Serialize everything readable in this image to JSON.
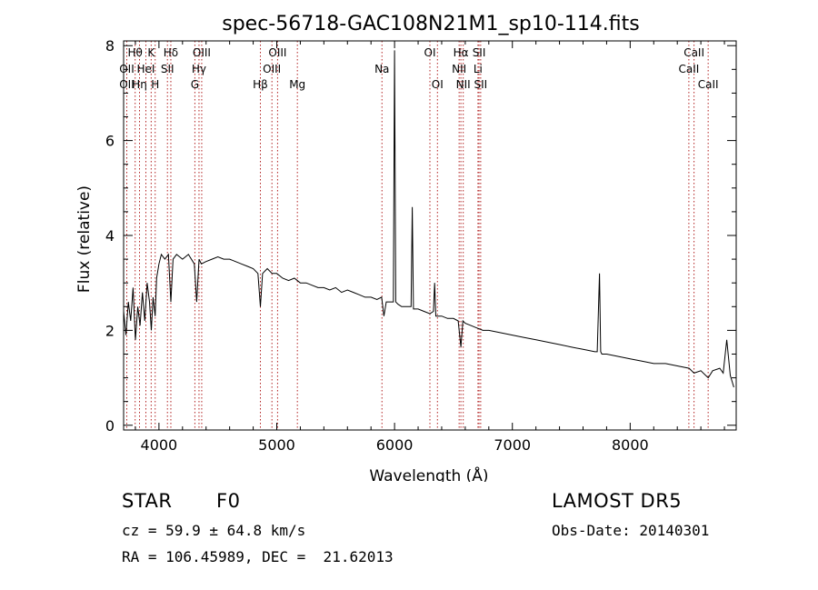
{
  "chart_data": {
    "type": "line",
    "title": "spec-56718-GAC108N21M1_sp10-114.fits",
    "xlabel": "Wavelength (Å)",
    "ylabel": "Flux (relative)",
    "xlim": [
      3700,
      8900
    ],
    "ylim": [
      -0.1,
      8.1
    ],
    "x_ticks": [
      4000,
      5000,
      6000,
      7000,
      8000
    ],
    "y_ticks": [
      0,
      2,
      4,
      6,
      8
    ],
    "grid": false,
    "series": [
      {
        "x": [
          3700,
          3720,
          3740,
          3760,
          3780,
          3800,
          3820,
          3840,
          3860,
          3880,
          3900,
          3920,
          3935,
          3950,
          3968,
          3980,
          4000,
          4020,
          4050,
          4080,
          4101,
          4120,
          4150,
          4200,
          4250,
          4300,
          4320,
          4340,
          4360,
          4400,
          4450,
          4500,
          4550,
          4600,
          4650,
          4700,
          4750,
          4800,
          4840,
          4861,
          4880,
          4920,
          4960,
          5000,
          5050,
          5100,
          5150,
          5200,
          5250,
          5300,
          5350,
          5400,
          5450,
          5500,
          5550,
          5600,
          5650,
          5700,
          5750,
          5800,
          5850,
          5890,
          5910,
          5930,
          5960,
          5990,
          6000,
          6010,
          6030,
          6060,
          6100,
          6140,
          6150,
          6160,
          6200,
          6250,
          6300,
          6330,
          6340,
          6350,
          6400,
          6450,
          6500,
          6540,
          6563,
          6580,
          6600,
          6650,
          6700,
          6750,
          6800,
          6900,
          7000,
          7100,
          7200,
          7300,
          7400,
          7500,
          7600,
          7700,
          7720,
          7740,
          7750,
          7760,
          7800,
          7900,
          8000,
          8100,
          8200,
          8300,
          8400,
          8500,
          8542,
          8600,
          8662,
          8700,
          8760,
          8790,
          8820,
          8850,
          8880
        ],
        "y": [
          2.4,
          1.9,
          2.6,
          2.2,
          2.9,
          1.8,
          2.5,
          2.1,
          2.8,
          2.2,
          3.0,
          2.6,
          2.0,
          2.7,
          2.3,
          3.1,
          3.4,
          3.6,
          3.5,
          3.6,
          2.6,
          3.5,
          3.6,
          3.5,
          3.6,
          3.4,
          2.6,
          3.5,
          3.4,
          3.45,
          3.5,
          3.55,
          3.5,
          3.5,
          3.45,
          3.4,
          3.35,
          3.3,
          3.2,
          2.5,
          3.2,
          3.3,
          3.2,
          3.2,
          3.1,
          3.05,
          3.1,
          3.0,
          3.0,
          2.95,
          2.9,
          2.9,
          2.85,
          2.9,
          2.8,
          2.85,
          2.8,
          2.75,
          2.7,
          2.7,
          2.65,
          2.7,
          2.3,
          2.6,
          2.6,
          2.6,
          7.9,
          2.6,
          2.55,
          2.5,
          2.5,
          2.5,
          4.6,
          2.45,
          2.45,
          2.4,
          2.35,
          2.4,
          3.0,
          2.3,
          2.3,
          2.25,
          2.25,
          2.2,
          1.65,
          2.2,
          2.15,
          2.1,
          2.05,
          2.0,
          2.0,
          1.95,
          1.9,
          1.85,
          1.8,
          1.75,
          1.7,
          1.65,
          1.6,
          1.55,
          1.55,
          3.2,
          1.55,
          1.5,
          1.5,
          1.45,
          1.4,
          1.35,
          1.3,
          1.3,
          1.25,
          1.2,
          1.1,
          1.15,
          1.0,
          1.15,
          1.2,
          1.1,
          1.8,
          1.05,
          0.8
        ]
      }
    ],
    "emission_lines": [
      {
        "label": "Hθ",
        "x": 3798,
        "row": 0
      },
      {
        "label": "OII",
        "x": 3727,
        "row": 1
      },
      {
        "label": "HeI",
        "x": 3889,
        "row": 1
      },
      {
        "label": "OII",
        "x": 3727,
        "row": 2
      },
      {
        "label": "Hη",
        "x": 3835,
        "row": 2
      },
      {
        "label": "K",
        "x": 3934,
        "row": 0
      },
      {
        "label": "H",
        "x": 3968,
        "row": 2
      },
      {
        "label": "Hδ",
        "x": 4101,
        "row": 0
      },
      {
        "label": "SII",
        "x": 4072,
        "row": 1
      },
      {
        "label": "OIII",
        "x": 4363,
        "row": 0
      },
      {
        "label": "Hγ",
        "x": 4340,
        "row": 1
      },
      {
        "label": "G",
        "x": 4305,
        "row": 2
      },
      {
        "label": "Hβ",
        "x": 4861,
        "row": 2
      },
      {
        "label": "OIII",
        "x": 5007,
        "row": 0
      },
      {
        "label": "OIII",
        "x": 4959,
        "row": 1
      },
      {
        "label": "Mg",
        "x": 5175,
        "row": 2
      },
      {
        "label": "Na",
        "x": 5893,
        "row": 1
      },
      {
        "label": "OI",
        "x": 6300,
        "row": 0
      },
      {
        "label": "OI",
        "x": 6364,
        "row": 2
      },
      {
        "label": "Hα",
        "x": 6563,
        "row": 0
      },
      {
        "label": "NII",
        "x": 6548,
        "row": 1
      },
      {
        "label": "NII",
        "x": 6583,
        "row": 2
      },
      {
        "label": "SII",
        "x": 6717,
        "row": 0
      },
      {
        "label": "Li",
        "x": 6708,
        "row": 1
      },
      {
        "label": "SII",
        "x": 6731,
        "row": 2
      },
      {
        "label": "CaII",
        "x": 8542,
        "row": 0
      },
      {
        "label": "CaII",
        "x": 8498,
        "row": 1
      },
      {
        "label": "CaII",
        "x": 8662,
        "row": 2
      }
    ]
  },
  "info": {
    "class_label": "STAR",
    "subclass": "F0",
    "survey": "LAMOST DR5",
    "cz": "cz = 59.9 ± 64.8 km/s",
    "obs_date": "Obs-Date: 20140301",
    "coords": "RA = 106.45989, DEC =  21.62013"
  },
  "colors": {
    "axis": "#000000",
    "spectrum": "#000000",
    "line_markers": "#b22222"
  }
}
